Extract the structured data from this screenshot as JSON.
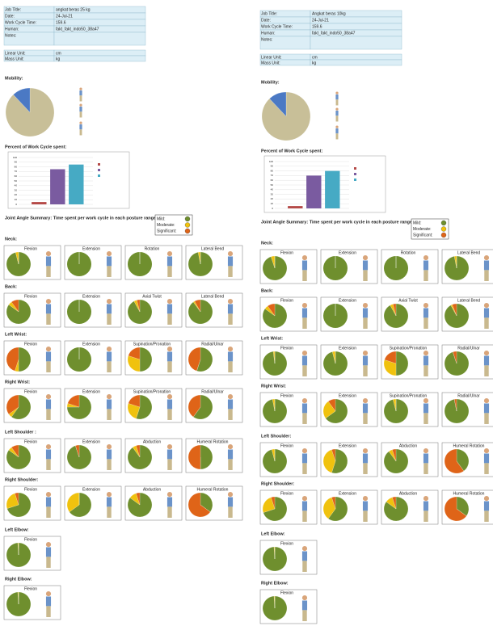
{
  "posture_colors": [
    "#6f8f2e",
    "#f0c20e",
    "#df6418"
  ],
  "reports": [
    {
      "info": [
        [
          "Job Title:",
          "angkat beras 25 kg"
        ],
        [
          "Date:",
          "24-Jul-21"
        ],
        [
          "Work Cycle Time:",
          "159.6"
        ],
        [
          "Human:",
          "fakt_fakt_indo50_38a47"
        ],
        [
          "Notes:",
          ""
        ],
        [
          "Linear Unit:",
          "cm"
        ],
        [
          "Mass Unit:",
          "kg"
        ]
      ],
      "mobility": {
        "title": "Mobility:",
        "values": [
          88,
          12
        ],
        "colors": [
          "#c8bf98",
          "#4b79c4"
        ]
      },
      "work_cycle": {
        "title": "Percent of Work Cycle spent:",
        "values": [
          5,
          75,
          85
        ],
        "colors": [
          "#b54a48",
          "#7a5ba0",
          "#46aac4"
        ],
        "ylim": [
          0,
          100
        ],
        "yticks": [
          0,
          10,
          20,
          30,
          40,
          50,
          60,
          70,
          80,
          90,
          100
        ]
      },
      "summary": {
        "title": "Joint Angle Summary: Time spent per work cycle in each posture range",
        "legend": [
          "Mild:",
          "Moderate:",
          "Significant:"
        ]
      },
      "sections": [
        {
          "title": "Neck:",
          "panels": [
            {
              "title": "Flexion",
              "values": [
                96,
                4,
                0
              ]
            },
            {
              "title": "Extension",
              "values": [
                100,
                0,
                0
              ]
            },
            {
              "title": "Rotation",
              "values": [
                100,
                0,
                0
              ]
            },
            {
              "title": "Lateral Bend",
              "values": [
                97,
                3,
                0
              ]
            }
          ]
        },
        {
          "title": "Back:",
          "panels": [
            {
              "title": "Flexion",
              "values": [
                85,
                5,
                10
              ]
            },
            {
              "title": "Extension",
              "values": [
                100,
                0,
                0
              ]
            },
            {
              "title": "Axial Twist",
              "values": [
                92,
                4,
                4
              ]
            },
            {
              "title": "Lateral Bend",
              "values": [
                90,
                2,
                8
              ]
            }
          ]
        },
        {
          "title": "Left Wrist:",
          "panels": [
            {
              "title": "Flexion",
              "values": [
                50,
                5,
                45
              ]
            },
            {
              "title": "Extension",
              "values": [
                100,
                0,
                0
              ]
            },
            {
              "title": "Supination/Pronation",
              "values": [
                50,
                30,
                20
              ]
            },
            {
              "title": "Radial/Ulnar",
              "values": [
                55,
                0,
                45
              ]
            }
          ]
        },
        {
          "title": "Right Wrist:",
          "panels": [
            {
              "title": "Flexion",
              "values": [
                60,
                5,
                35
              ]
            },
            {
              "title": "Extension",
              "values": [
                75,
                5,
                20
              ]
            },
            {
              "title": "Supination/Pronation",
              "values": [
                55,
                25,
                20
              ]
            },
            {
              "title": "Radial/Ulnar",
              "values": [
                60,
                0,
                40
              ]
            }
          ]
        },
        {
          "title": "Left Shoulder :",
          "panels": [
            {
              "title": "Flexion",
              "values": [
                85,
                5,
                10
              ]
            },
            {
              "title": "Extension",
              "values": [
                95,
                0,
                5
              ]
            },
            {
              "title": "Abduction",
              "values": [
                90,
                5,
                5
              ]
            },
            {
              "title": "Humeral Rotation",
              "values": [
                50,
                0,
                50
              ]
            }
          ]
        },
        {
          "title": "Right Shoulder:",
          "panels": [
            {
              "title": "Flexion",
              "values": [
                70,
                25,
                5
              ]
            },
            {
              "title": "Extension",
              "values": [
                65,
                35,
                0
              ]
            },
            {
              "title": "Abduction",
              "values": [
                85,
                10,
                5
              ]
            },
            {
              "title": "Humeral Rotation",
              "values": [
                35,
                0,
                65
              ]
            }
          ]
        },
        {
          "title": "Left Elbow:",
          "panels": [
            {
              "title": "Flexion",
              "values": [
                99,
                1,
                0
              ]
            }
          ]
        },
        {
          "title": "Right Elbow:",
          "panels": [
            {
              "title": "Flexion",
              "values": [
                99,
                1,
                0
              ]
            }
          ]
        }
      ]
    },
    {
      "info": [
        [
          "Job Title:",
          "Angkat beras 10kg"
        ],
        [
          "Date:",
          "24-Jul-21"
        ],
        [
          "Work Cycle Time:",
          "159.6"
        ],
        [
          "Human:",
          "fakt_fakt_indo50_38a47"
        ],
        [
          "Notes:",
          ""
        ],
        [
          "Linear Unit:",
          "cm"
        ],
        [
          "Mass Unit:",
          "kg"
        ]
      ],
      "mobility": {
        "title": "Mobility:",
        "values": [
          88,
          12
        ],
        "colors": [
          "#c8bf98",
          "#4b79c4"
        ]
      },
      "work_cycle": {
        "title": "Percent of Work Cycle spent:",
        "values": [
          5,
          70,
          80
        ],
        "colors": [
          "#b54a48",
          "#7a5ba0",
          "#46aac4"
        ],
        "ylim": [
          0,
          100
        ],
        "yticks": [
          0,
          10,
          20,
          30,
          40,
          50,
          60,
          70,
          80,
          90,
          100
        ]
      },
      "summary": {
        "title": "Joint Angle Summary: Time spent per work cycle in each posture range",
        "legend": [
          "Mild:",
          "Moderate:",
          "Significant:"
        ]
      },
      "sections": [
        {
          "title": "Neck:",
          "panels": [
            {
              "title": "Flexion",
              "values": [
                95,
                5,
                0
              ]
            },
            {
              "title": "Extension",
              "values": [
                100,
                0,
                0
              ]
            },
            {
              "title": "Rotation",
              "values": [
                100,
                0,
                0
              ]
            },
            {
              "title": "Lateral Bend",
              "values": [
                97,
                3,
                0
              ]
            }
          ]
        },
        {
          "title": "Back:",
          "panels": [
            {
              "title": "Flexion",
              "values": [
                85,
                5,
                10
              ]
            },
            {
              "title": "Extension",
              "values": [
                100,
                0,
                0
              ]
            },
            {
              "title": "Axial Twist",
              "values": [
                92,
                4,
                4
              ]
            },
            {
              "title": "Lateral Bend",
              "values": [
                92,
                2,
                6
              ]
            }
          ]
        },
        {
          "title": "Left Wrist:",
          "panels": [
            {
              "title": "Flexion",
              "values": [
                98,
                2,
                0
              ]
            },
            {
              "title": "Extension",
              "values": [
                96,
                4,
                0
              ]
            },
            {
              "title": "Supination/Pronation",
              "values": [
                50,
                30,
                20
              ]
            },
            {
              "title": "Radial/Ulnar",
              "values": [
                95,
                0,
                5
              ]
            }
          ]
        },
        {
          "title": "Right Wrist:",
          "panels": [
            {
              "title": "Flexion",
              "values": [
                97,
                3,
                0
              ]
            },
            {
              "title": "Extension",
              "values": [
                65,
                25,
                10
              ]
            },
            {
              "title": "Supination/Pronation",
              "values": [
                96,
                4,
                0
              ]
            },
            {
              "title": "Radial/Ulnar",
              "values": [
                97,
                0,
                3
              ]
            }
          ]
        },
        {
          "title": "Left Shoulder:",
          "panels": [
            {
              "title": "Flexion",
              "values": [
                96,
                4,
                0
              ]
            },
            {
              "title": "Extension",
              "values": [
                55,
                40,
                5
              ]
            },
            {
              "title": "Abduction",
              "values": [
                90,
                5,
                5
              ]
            },
            {
              "title": "Humeral Rotation",
              "values": [
                40,
                0,
                60
              ]
            }
          ]
        },
        {
          "title": "Right Shoulder:",
          "panels": [
            {
              "title": "Flexion",
              "values": [
                70,
                25,
                5
              ]
            },
            {
              "title": "Extension",
              "values": [
                60,
                35,
                5
              ]
            },
            {
              "title": "Abduction",
              "values": [
                85,
                10,
                5
              ]
            },
            {
              "title": "Humeral Rotation",
              "values": [
                35,
                0,
                65
              ]
            }
          ]
        },
        {
          "title": "Left Elbow:",
          "panels": [
            {
              "title": "Flexion",
              "values": [
                99,
                1,
                0
              ]
            }
          ]
        },
        {
          "title": "Right Elbow:",
          "panels": [
            {
              "title": "Flexion",
              "values": [
                99,
                1,
                0
              ]
            }
          ]
        }
      ]
    }
  ]
}
